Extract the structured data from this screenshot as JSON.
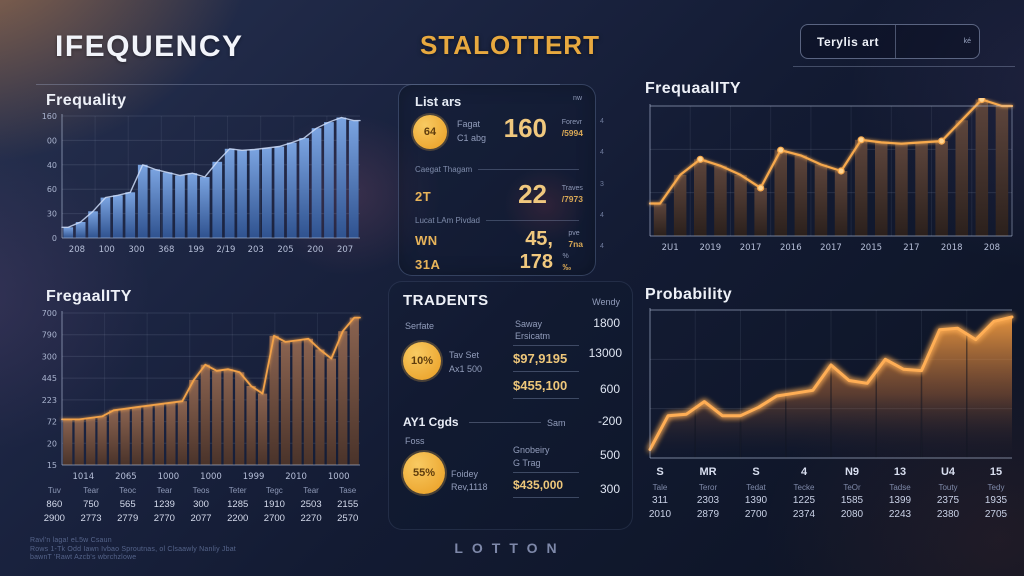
{
  "header": {
    "title_left": "IFEQUENCY",
    "title_center": "STALOTTERT",
    "search_label": "Terylis art",
    "search_hint": "ké"
  },
  "colors": {
    "accent_gold": "#e8a93f",
    "value_gold": "#f0c87e",
    "blue_bar": "#4d7fc8",
    "orange_line": "#f2a24a",
    "area_orange": "#f69e40",
    "background": "#121a31",
    "text_primary": "#edf0f8",
    "text_muted": "#8d98b6"
  },
  "chart_data": [
    {
      "id": "blue",
      "type": "bar",
      "title": "Frequality",
      "bars": true,
      "line": true,
      "line_color": "rgba(205,220,248,0.85)",
      "line_width": 1.4,
      "gradient": "grad-blue",
      "bar_ratio": 0.78,
      "frame": "LB",
      "hgrid": 5,
      "vgrid": 9,
      "ylim": [
        0,
        160
      ],
      "ylabels": [
        "160",
        "00",
        "40",
        "60",
        "30",
        "0"
      ],
      "categories": [
        "208",
        "100",
        "300",
        "368",
        "199",
        "2/19",
        "203",
        "205",
        "200",
        "207"
      ],
      "values": [
        14,
        21,
        35,
        53,
        56,
        60,
        96,
        90,
        86,
        82,
        85,
        80,
        100,
        117,
        115,
        116,
        118,
        120,
        125,
        131,
        144,
        152,
        158,
        154
      ]
    },
    {
      "id": "brown",
      "type": "bar",
      "title": "FregaalITY",
      "bars": true,
      "line": true,
      "line_color": "#f2a24a",
      "line_width": 1.8,
      "glow": "glow-soft",
      "gradient": "grad-brown",
      "bar_ratio": 0.8,
      "frame": "LB",
      "hgrid": 7,
      "vgrid": 7,
      "ylim": [
        0,
        700
      ],
      "ylabels": [
        "700",
        "790",
        "300",
        "445",
        "223",
        "72",
        "20",
        "15"
      ],
      "categories": [
        "1014",
        "2065",
        "1000",
        "1000",
        "1999",
        "2010",
        "1000"
      ],
      "values": [
        210,
        210,
        217,
        224,
        252,
        259,
        266,
        273,
        280,
        287,
        294,
        392,
        462,
        434,
        441,
        427,
        364,
        329,
        595,
        567,
        574,
        581,
        532,
        490,
        616,
        679
      ]
    },
    {
      "id": "dark",
      "type": "bar",
      "title": "FrequaalITY",
      "bars": true,
      "line": true,
      "line_color": "#f7a94e",
      "line_width": 2.2,
      "glow": "glow-soft",
      "gradient": "grad-dark",
      "bar_ratio": 0.62,
      "frame": "LTRB",
      "hgrid": 3,
      "vgrid": 9,
      "markers": [
        2,
        5,
        6,
        9,
        10,
        14,
        16
      ],
      "ylim": [
        0,
        100
      ],
      "categories": [
        "2U1",
        "2019",
        "2017",
        "2016",
        "2017",
        "2015",
        "217",
        "2018",
        "208"
      ],
      "values": [
        25,
        47,
        59,
        54,
        47,
        37,
        66,
        62,
        55,
        50,
        74,
        72,
        71,
        72,
        73,
        89,
        105,
        100
      ]
    },
    {
      "id": "prob",
      "type": "area",
      "title": "Probability",
      "line": true,
      "line_color": "#ffae54",
      "line_width": 3,
      "glow": "glow-strong",
      "gradient": "grad-area",
      "frame": "LTB",
      "hgrid": 3,
      "vgrid": 8,
      "xlabels": false,
      "ylim": [
        0,
        105
      ],
      "categories": [
        "S",
        "MR",
        "S",
        "4",
        "N9",
        "13",
        "U4",
        "15"
      ],
      "values": [
        6,
        30,
        31,
        40,
        30,
        30,
        36,
        44,
        46,
        48,
        66,
        55,
        53,
        70,
        63,
        62,
        91,
        92,
        84,
        97,
        100
      ]
    }
  ],
  "list": {
    "title": "List ars",
    "corner": "nw",
    "r1": {
      "badge": "64",
      "label1": "Fagat",
      "label2": "C1 abg",
      "value": "160",
      "caption": "Forevr",
      "suffix": "/5994"
    },
    "div1": "Caegat Thagam",
    "r2": {
      "code": "2T",
      "value": "22",
      "caption": "Traves",
      "suffix": "/7973"
    },
    "div2": "Lucat LAm Pivdad",
    "r3": {
      "code": "WN",
      "value": "45,",
      "caption": "pve",
      "suffix": "7na"
    },
    "r4": {
      "code": "31A",
      "value": "178",
      "caption": "%",
      "suffix": "‰"
    },
    "ticks": [
      "4",
      "4",
      "3",
      "4",
      "4"
    ]
  },
  "trends": {
    "title": "TRADENTS",
    "col_header": "Wendy",
    "label_serfate": "Serfate",
    "label_saway": "Saway",
    "label_ersicatm": "Ersicatm",
    "badge1": "10%",
    "badge1_l1": "Tav Set",
    "badge1_l2": "Ax1 500",
    "value1": "$97,9195",
    "value2": "$455,100",
    "n1": "1800",
    "n2": "13000",
    "n3": "600",
    "n4": "-200",
    "n5": "500",
    "n6": "300",
    "section2": "AY1 Cgds",
    "section2_right": "Sam",
    "label_foss": "Foss",
    "badge2": "55%",
    "badge2_l1": "Foidey",
    "badge2_l2": "Rev,1118",
    "label_gnobeiry": "Gnobeiry",
    "label_gtrag": "G Trag",
    "value3": "$435,000"
  },
  "left_table": {
    "header": [
      "Tuv",
      "Tear",
      "Teoc",
      "Tear",
      "Teos",
      "Teter",
      "Tegc",
      "Tear",
      "Tase"
    ],
    "row1": [
      "860",
      "750",
      "565",
      "1239",
      "300",
      "1285",
      "1910",
      "2503",
      "2155"
    ],
    "row2": [
      "2900",
      "2773",
      "2779",
      "2770",
      "2077",
      "2200",
      "2700",
      "2270",
      "2570"
    ]
  },
  "right_table": {
    "categories": [
      "S",
      "MR",
      "S",
      "4",
      "N9",
      "13",
      "U4",
      "15"
    ],
    "names": [
      "Tale",
      "Teror",
      "Tedat",
      "Tecke",
      "TeOr",
      "Tadse",
      "Touty",
      "Tedy"
    ],
    "row1": [
      "311",
      "2303",
      "1390",
      "1225",
      "1585",
      "1399",
      "2375",
      "1935"
    ],
    "row2": [
      "2010",
      "2879",
      "2700",
      "2374",
      "2080",
      "2243",
      "2380",
      "2705"
    ]
  },
  "footer": {
    "brand": "LOTTON",
    "fine_print": [
      "Ravl'n laga! eL5w Csaun",
      "Rows 1-Tk Odd Iawn Ivbao Sproutnas, ol Clsaawly Nanliy Jbat",
      "bawnT 'Rawt Azcb's wbrchzlowe"
    ]
  }
}
